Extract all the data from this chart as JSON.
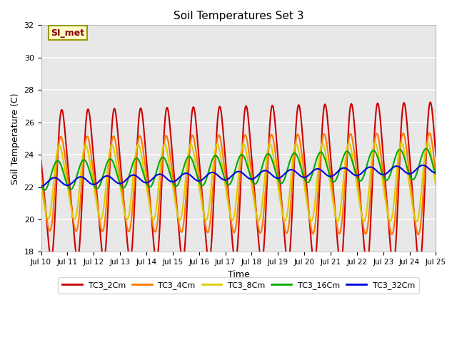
{
  "title": "Soil Temperatures Set 3",
  "xlabel": "Time",
  "ylabel": "Soil Temperature (C)",
  "ylim": [
    18,
    32
  ],
  "x_tick_labels": [
    "Jul 10",
    "Jul 11",
    "Jul 12",
    "Jul 13",
    "Jul 14",
    "Jul 15",
    "Jul 16",
    "Jul 17",
    "Jul 18",
    "Jul 19",
    "Jul 20",
    "Jul 21",
    "Jul 22",
    "Jul 23",
    "Jul 24",
    "Jul 25"
  ],
  "series_colors": [
    "#cc0000",
    "#ff7700",
    "#ddcc00",
    "#00aa00",
    "#0000dd"
  ],
  "series_labels": [
    "TC3_2Cm",
    "TC3_4Cm",
    "TC3_8Cm",
    "TC3_16Cm",
    "TC3_32Cm"
  ],
  "line_width": 1.5,
  "bg_color": "#e8e8e8",
  "fig_bg": "#ffffff",
  "grid_color": "#ffffff",
  "annotation_text": "SI_met",
  "annotation_bg": "#ffffcc",
  "annotation_border": "#999900",
  "annotation_text_color": "#880000",
  "yticks": [
    18,
    20,
    22,
    24,
    26,
    28,
    30,
    32
  ]
}
